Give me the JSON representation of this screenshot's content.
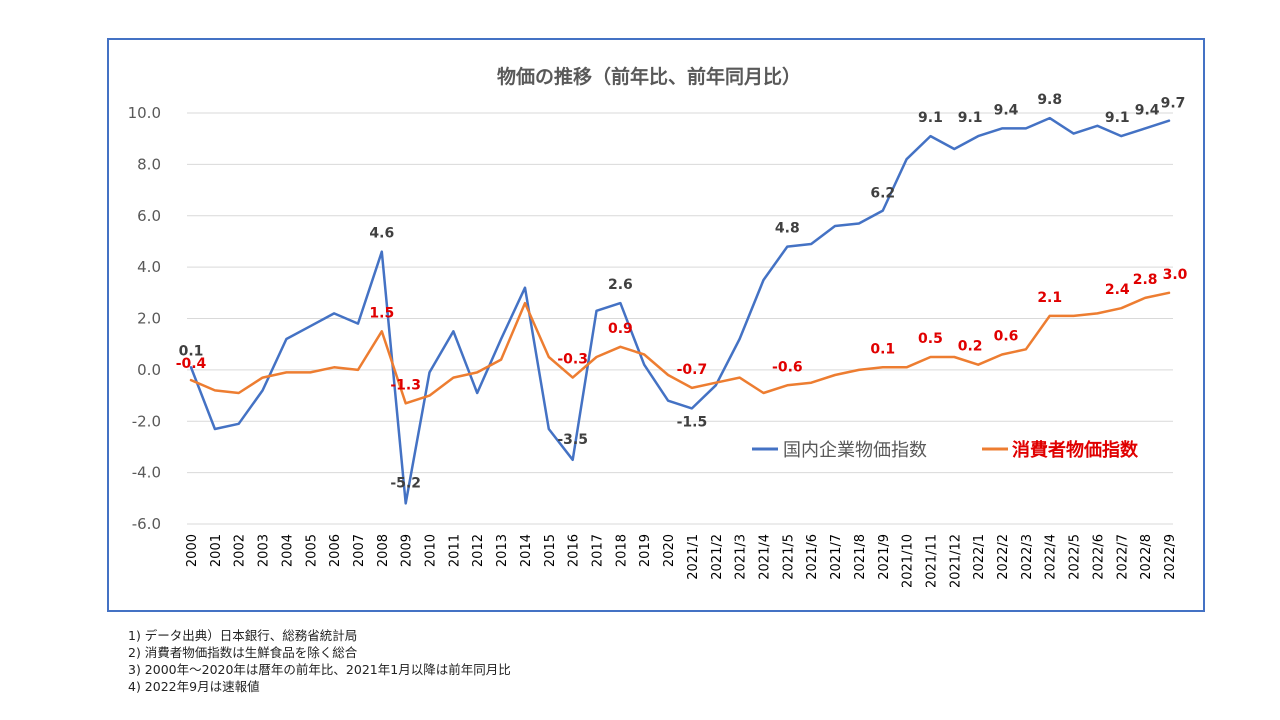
{
  "chart_data": {
    "type": "line",
    "title": "物価の推移（前年比、前年同月比）",
    "categories": [
      "2000",
      "2001",
      "2002",
      "2003",
      "2004",
      "2005",
      "2006",
      "2007",
      "2008",
      "2009",
      "2010",
      "2011",
      "2012",
      "2013",
      "2014",
      "2015",
      "2016",
      "2017",
      "2018",
      "2019",
      "2020",
      "2021/1",
      "2021/2",
      "2021/3",
      "2021/4",
      "2021/5",
      "2021/6",
      "2021/7",
      "2021/8",
      "2021/9",
      "2021/10",
      "2021/11",
      "2021/12",
      "2022/1",
      "2022/2",
      "2022/3",
      "2022/4",
      "2022/5",
      "2022/6",
      "2022/7",
      "2022/8",
      "2022/9"
    ],
    "ylim": [
      -6,
      10
    ],
    "yticks": [
      "10.0",
      "8.0",
      "6.0",
      "4.0",
      "2.0",
      "0.0",
      "-2.0",
      "-4.0",
      "-6.0"
    ],
    "grid": true,
    "legend_position": "right",
    "series": [
      {
        "name": "国内企業物価指数",
        "color": "#4472c4",
        "values": [
          0.1,
          -2.3,
          -2.1,
          -0.8,
          1.2,
          1.7,
          2.2,
          1.8,
          4.6,
          -5.2,
          -0.1,
          1.5,
          -0.9,
          1.2,
          3.2,
          -2.3,
          -3.5,
          2.3,
          2.6,
          0.2,
          -1.2,
          -1.5,
          -0.6,
          1.2,
          3.5,
          4.8,
          4.9,
          5.6,
          5.7,
          6.2,
          8.2,
          9.1,
          8.6,
          9.1,
          9.4,
          9.4,
          9.8,
          9.2,
          9.5,
          9.1,
          9.4,
          9.7
        ],
        "labels": [
          {
            "index": 0,
            "text": "0.1"
          },
          {
            "index": 8,
            "text": "4.6"
          },
          {
            "index": 9,
            "text": "-5.2"
          },
          {
            "index": 16,
            "text": "-3.5"
          },
          {
            "index": 18,
            "text": "2.6"
          },
          {
            "index": 21,
            "text": "-1.5"
          },
          {
            "index": 25,
            "text": "4.8"
          },
          {
            "index": 29,
            "text": "6.2"
          },
          {
            "index": 31,
            "text": "9.1"
          },
          {
            "index": 33,
            "text": "9.1"
          },
          {
            "index": 34,
            "text": "9.4"
          },
          {
            "index": 36,
            "text": "9.8"
          },
          {
            "index": 39,
            "text": "9.1"
          },
          {
            "index": 40,
            "text": "9.4"
          },
          {
            "index": 41,
            "text": "9.7"
          }
        ]
      },
      {
        "name": "消費者物価指数",
        "color": "#ed7d31",
        "values": [
          -0.4,
          -0.8,
          -0.9,
          -0.3,
          -0.1,
          -0.1,
          0.1,
          0.0,
          1.5,
          -1.3,
          -1.0,
          -0.3,
          -0.1,
          0.4,
          2.6,
          0.5,
          -0.3,
          0.5,
          0.9,
          0.6,
          -0.2,
          -0.7,
          -0.5,
          -0.3,
          -0.9,
          -0.6,
          -0.5,
          -0.2,
          0.0,
          0.1,
          0.1,
          0.5,
          0.5,
          0.2,
          0.6,
          0.8,
          2.1,
          2.1,
          2.2,
          2.4,
          2.8,
          3.0
        ],
        "labels": [
          {
            "index": 0,
            "text": "-0.4"
          },
          {
            "index": 8,
            "text": "1.5"
          },
          {
            "index": 9,
            "text": "-1.3"
          },
          {
            "index": 16,
            "text": "-0.3"
          },
          {
            "index": 18,
            "text": "0.9"
          },
          {
            "index": 21,
            "text": "-0.7"
          },
          {
            "index": 25,
            "text": "-0.6"
          },
          {
            "index": 29,
            "text": "0.1"
          },
          {
            "index": 31,
            "text": "0.5"
          },
          {
            "index": 33,
            "text": "0.2"
          },
          {
            "index": 34,
            "text": "0.6"
          },
          {
            "index": 36,
            "text": "2.1"
          },
          {
            "index": 39,
            "text": "2.4"
          },
          {
            "index": 40,
            "text": "2.8"
          },
          {
            "index": 41,
            "text": "3.0"
          }
        ]
      }
    ]
  },
  "notes": [
    "1) データ出典）日本銀行、総務省統計局",
    "2) 消費者物価指数は生鮮食品を除く総合",
    "3) 2000年～2020年は暦年の前年比、2021年1月以降は前年同月比",
    "4) 2022年9月は速報値"
  ]
}
